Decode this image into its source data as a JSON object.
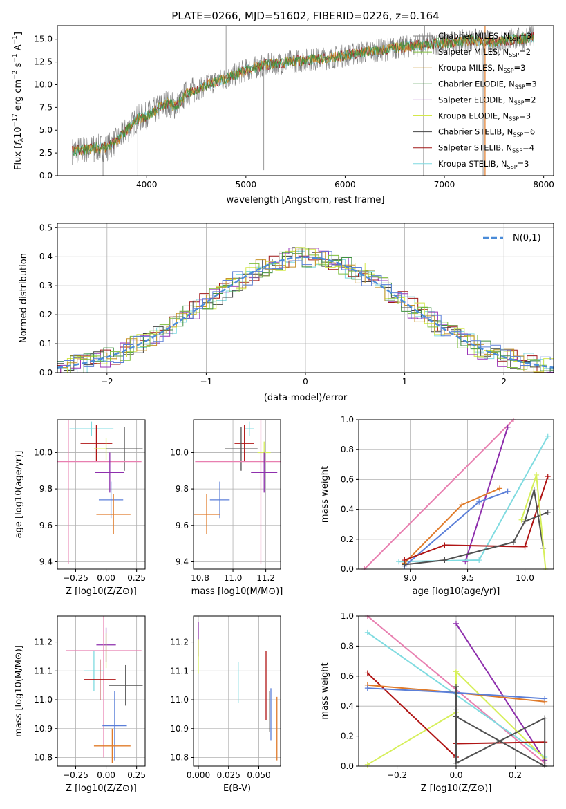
{
  "colors": {
    "Chabrier MILES": "#7f7f7f",
    "Salpeter MILES": "#7fbf3f",
    "Kroupa MILES": "#c8922a",
    "Chabrier ELODIE": "#3f8f3f",
    "Salpeter ELODIE": "#9a35b8",
    "Kroupa ELODIE": "#d4e84a",
    "Chabrier STELIB": "#444444",
    "Salpeter STELIB": "#a01818",
    "Kroupa STELIB": "#7fd9e0",
    "blue": "#5b7fd8",
    "orange": "#e07b2a",
    "pink": "#e87fb0",
    "purple": "#8e2fad",
    "cyan": "#7fdbe0",
    "red": "#b01515",
    "dark": "#505050",
    "yellow": "#d6ef5a",
    "normal": "#4a8bd8"
  },
  "chart_data": [
    {
      "id": "spectrum",
      "type": "line",
      "title": "PLATE=0266, MJD=51602, FIBERID=0226, z=0.164",
      "xlabel": "wavelength [Angstrom, rest frame]",
      "ylabel": "Flux [f_λ10^-17 erg cm^-2 s^-1 A^-1]",
      "xlim": [
        3100,
        8100
      ],
      "ylim": [
        0,
        16.5
      ],
      "xticks": [
        "4000",
        "5000",
        "6000",
        "7000",
        "8000"
      ],
      "yticks": [
        "0.0",
        "2.5",
        "5.0",
        "7.5",
        "10.0",
        "12.5",
        "15.0"
      ],
      "legend": [
        "Chabrier MILES, N_SSP=3",
        "Salpeter MILES, N_SSP=2",
        "Kroupa MILES, N_SSP=3",
        "Chabrier ELODIE, N_SSP=3",
        "Salpeter ELODIE, N_SSP=2",
        "Kroupa ELODIE, N_SSP=3",
        "Chabrier STELIB, N_SSP=6",
        "Salpeter STELIB, N_SSP=4",
        "Kroupa STELIB, N_SSP=3"
      ],
      "legend_keys": [
        "Chabrier MILES",
        "Salpeter MILES",
        "Kroupa MILES",
        "Chabrier ELODIE",
        "Salpeter ELODIE",
        "Kroupa ELODIE",
        "Chabrier STELIB",
        "Salpeter STELIB",
        "Kroupa STELIB"
      ],
      "legend_labels": [
        {
          "pre": "Chabrier MILES, N",
          "sub": "SSP",
          "post": "=3"
        },
        {
          "pre": "Salpeter MILES, N",
          "sub": "SSP",
          "post": "=2"
        },
        {
          "pre": "Kroupa MILES, N",
          "sub": "SSP",
          "post": "=3"
        },
        {
          "pre": "Chabrier ELODIE, N",
          "sub": "SSP",
          "post": "=3"
        },
        {
          "pre": "Salpeter ELODIE, N",
          "sub": "SSP",
          "post": "=2"
        },
        {
          "pre": "Kroupa ELODIE, N",
          "sub": "SSP",
          "post": "=3"
        },
        {
          "pre": "Chabrier STELIB, N",
          "sub": "SSP",
          "post": "=6"
        },
        {
          "pre": "Salpeter STELIB, N",
          "sub": "SSP",
          "post": "=4"
        },
        {
          "pre": "Kroupa STELIB, N",
          "sub": "SSP",
          "post": "=3"
        }
      ],
      "continuum": [
        [
          3250,
          2.7
        ],
        [
          3450,
          3.0
        ],
        [
          3600,
          3.1
        ],
        [
          3700,
          3.8
        ],
        [
          3800,
          5.0
        ],
        [
          3900,
          6.2
        ],
        [
          4000,
          6.6
        ],
        [
          4100,
          7.3
        ],
        [
          4200,
          8.0
        ],
        [
          4300,
          7.6
        ],
        [
          4400,
          9.0
        ],
        [
          4600,
          10.0
        ],
        [
          4800,
          10.7
        ],
        [
          5000,
          11.6
        ],
        [
          5200,
          12.2
        ],
        [
          5500,
          12.6
        ],
        [
          5800,
          12.9
        ],
        [
          6000,
          13.2
        ],
        [
          6200,
          13.6
        ],
        [
          6500,
          14.0
        ],
        [
          6700,
          14.3
        ],
        [
          7000,
          14.6
        ],
        [
          7300,
          14.9
        ],
        [
          7500,
          14.6
        ],
        [
          7700,
          15.0
        ],
        [
          7900,
          15.2
        ]
      ],
      "grey_spikes": [
        [
          3470,
          1.5
        ],
        [
          3560,
          0.0
        ],
        [
          3640,
          0.3
        ],
        [
          3910,
          0.0
        ],
        [
          4800,
          16.5
        ],
        [
          4810,
          0.0
        ],
        [
          5180,
          0.6
        ],
        [
          6790,
          0.0
        ],
        [
          6800,
          16.5
        ],
        [
          7390,
          0.0
        ],
        [
          7400,
          16.5
        ],
        [
          7450,
          14.2
        ]
      ],
      "orange_spike_x": 7410
    },
    {
      "id": "residuals",
      "type": "line",
      "xlabel": "(data-model)/error",
      "ylabel": "Normed distribution",
      "xlim": [
        -2.5,
        2.5
      ],
      "ylim": [
        0,
        0.515
      ],
      "xticks": [
        "−2",
        "−1",
        "0",
        "1",
        "2"
      ],
      "yticks": [
        "0.0",
        "0.1",
        "0.2",
        "0.3",
        "0.4",
        "0.5"
      ],
      "legend": "N(0,1)",
      "series": [
        {
          "name": "N(0,1)",
          "mean": 0,
          "sigma": 1
        }
      ]
    },
    {
      "id": "age_vs_Z",
      "type": "scatter",
      "xlabel": "Z [log10(Z/Z⊙)]",
      "ylabel": "age [log10(age/yr)]",
      "xlim": [
        -0.4,
        0.32
      ],
      "ylim": [
        9.36,
        10.18
      ],
      "xticks": [
        "−0.25",
        "0.00",
        "0.25"
      ],
      "yticks": [
        "9.4",
        "9.6",
        "9.8",
        "10.0"
      ],
      "points": [
        {
          "c": "cyan",
          "x": -0.12,
          "y": 10.13,
          "xe": 0.18,
          "ye": 0.04
        },
        {
          "c": "red",
          "x": -0.08,
          "y": 10.05,
          "xe": 0.13,
          "ye": 0.1
        },
        {
          "c": "yellow",
          "x": 0.0,
          "y": 10.02,
          "xe": 0.1,
          "ye": 0.06
        },
        {
          "c": "dark",
          "x": 0.15,
          "y": 10.02,
          "xe": 0.15,
          "ye": 0.12
        },
        {
          "c": "pink",
          "x": -0.31,
          "y": 9.95,
          "xe": 0.6,
          "ye": 0.56
        },
        {
          "c": "purple",
          "x": 0.03,
          "y": 9.89,
          "xe": 0.12,
          "ye": 0.11
        },
        {
          "c": "blue",
          "x": 0.04,
          "y": 9.74,
          "xe": 0.1,
          "ye": 0.1
        },
        {
          "c": "orange",
          "x": 0.06,
          "y": 9.66,
          "xe": 0.14,
          "ye": 0.11
        }
      ]
    },
    {
      "id": "age_vs_mass",
      "type": "scatter",
      "xlabel": "mass [log10(M/M⊙)]",
      "ylabel": "",
      "xlim": [
        10.76,
        11.29
      ],
      "ylim": [
        9.36,
        10.18
      ],
      "xticks": [
        "10.8",
        "11.0",
        "11.2"
      ],
      "yticks": [
        "9.4",
        "9.6",
        "9.8",
        "10.0"
      ],
      "points": [
        {
          "c": "cyan",
          "x": 11.1,
          "y": 10.13,
          "xe": 0.03,
          "ye": 0.04
        },
        {
          "c": "red",
          "x": 11.07,
          "y": 10.05,
          "xe": 0.06,
          "ye": 0.1
        },
        {
          "c": "yellow",
          "x": 11.19,
          "y": 10.0,
          "xe": 0.04,
          "ye": 0.06
        },
        {
          "c": "dark",
          "x": 11.05,
          "y": 10.02,
          "xe": 0.1,
          "ye": 0.12
        },
        {
          "c": "pink",
          "x": 11.17,
          "y": 9.95,
          "xe": 0.4,
          "ye": 0.56
        },
        {
          "c": "purple",
          "x": 11.19,
          "y": 9.89,
          "xe": 0.08,
          "ye": 0.11
        },
        {
          "c": "blue",
          "x": 10.92,
          "y": 9.74,
          "xe": 0.06,
          "ye": 0.1
        },
        {
          "c": "orange",
          "x": 10.84,
          "y": 9.66,
          "xe": 0.08,
          "ye": 0.11
        }
      ]
    },
    {
      "id": "mass_weight_vs_age",
      "type": "line",
      "xlabel": "age [log10(age/yr)]",
      "ylabel": "mass weight",
      "xlim": [
        8.55,
        10.25
      ],
      "ylim": [
        0,
        1.0
      ],
      "xticks": [
        "9.0",
        "9.5",
        "10.0"
      ],
      "yticks": [
        "0.0",
        "0.2",
        "0.4",
        "0.6",
        "0.8",
        "1.0"
      ],
      "series": [
        {
          "c": "pink",
          "x": [
            8.6,
            9.9
          ],
          "y": [
            0.0,
            1.0
          ]
        },
        {
          "c": "purple",
          "x": [
            9.48,
            9.85
          ],
          "y": [
            0.05,
            0.95
          ]
        },
        {
          "c": "cyan",
          "x": [
            8.9,
            9.6,
            10.2
          ],
          "y": [
            0.05,
            0.06,
            0.89
          ]
        },
        {
          "c": "orange",
          "x": [
            8.95,
            9.45,
            9.78
          ],
          "y": [
            0.04,
            0.43,
            0.54
          ]
        },
        {
          "c": "blue",
          "x": [
            8.95,
            9.6,
            9.85
          ],
          "y": [
            0.02,
            0.45,
            0.52
          ]
        },
        {
          "c": "red",
          "x": [
            8.95,
            9.3,
            10.0,
            10.2
          ],
          "y": [
            0.06,
            0.16,
            0.15,
            0.62
          ]
        },
        {
          "c": "dark",
          "x": [
            8.95,
            9.3,
            9.9,
            10.0,
            10.2
          ],
          "y": [
            0.03,
            0.06,
            0.18,
            0.32,
            0.38
          ]
        },
        {
          "c": "dark",
          "x": [
            10.0,
            10.08,
            10.16
          ],
          "y": [
            0.32,
            0.53,
            0.14
          ]
        },
        {
          "c": "yellow",
          "x": [
            9.97,
            10.1,
            10.18
          ],
          "y": [
            0.33,
            0.63,
            0.0
          ]
        }
      ]
    },
    {
      "id": "mass_vs_Z",
      "type": "scatter",
      "xlabel": "Z [log10(Z/Z⊙)]",
      "ylabel": "mass [log10(M/M⊙)]",
      "xlim": [
        -0.4,
        0.32
      ],
      "ylim": [
        10.77,
        11.29
      ],
      "xticks": [
        "−0.25",
        "0.00",
        "0.25"
      ],
      "yticks": [
        "10.8",
        "10.9",
        "11.0",
        "11.1",
        "11.2"
      ],
      "points": [
        {
          "c": "purple",
          "x": 0.0,
          "y": 11.19,
          "xe": 0.08,
          "ye": 0.06
        },
        {
          "c": "yellow",
          "x": 0.0,
          "y": 11.17,
          "xe": 0.03,
          "ye": 0.06
        },
        {
          "c": "pink",
          "x": -0.02,
          "y": 11.17,
          "xe": 0.31,
          "ye": 0.37
        },
        {
          "c": "cyan",
          "x": -0.1,
          "y": 11.1,
          "xe": 0.08,
          "ye": 0.07
        },
        {
          "c": "red",
          "x": -0.05,
          "y": 11.07,
          "xe": 0.13,
          "ye": 0.07
        },
        {
          "c": "dark",
          "x": 0.16,
          "y": 11.05,
          "xe": 0.14,
          "ye": 0.07
        },
        {
          "c": "blue",
          "x": 0.07,
          "y": 10.91,
          "xe": 0.1,
          "ye": 0.12
        },
        {
          "c": "orange",
          "x": 0.05,
          "y": 10.84,
          "xe": 0.15,
          "ye": 0.06
        }
      ]
    },
    {
      "id": "mass_vs_EBV",
      "type": "scatter",
      "xlabel": "E(B-V)",
      "ylabel": "",
      "xlim": [
        -0.004,
        0.068
      ],
      "ylim": [
        10.77,
        11.29
      ],
      "xticks": [
        "0.000",
        "0.025",
        "0.050"
      ],
      "yticks": [
        "10.8",
        "10.9",
        "11.0",
        "11.1",
        "11.2"
      ],
      "points": [
        {
          "c": "purple",
          "x": 0.0,
          "y": 11.21,
          "xe": 0,
          "ye": 0.06
        },
        {
          "c": "yellow",
          "x": 0.0,
          "y": 11.15,
          "xe": 0,
          "ye": 0.06
        },
        {
          "c": "cyan",
          "x": 0.033,
          "y": 11.06,
          "xe": 0,
          "ye": 0.07
        },
        {
          "c": "red",
          "x": 0.056,
          "y": 11.05,
          "xe": 0,
          "ye": 0.12
        },
        {
          "c": "dark",
          "x": 0.059,
          "y": 10.96,
          "xe": 0,
          "ye": 0.07
        },
        {
          "c": "blue",
          "x": 0.06,
          "y": 10.95,
          "xe": 0,
          "ye": 0.09
        },
        {
          "c": "orange",
          "x": 0.065,
          "y": 10.9,
          "xe": 0,
          "ye": 0.11
        }
      ]
    },
    {
      "id": "mass_weight_vs_Z",
      "type": "line",
      "xlabel": "Z [log10(Z/Z⊙)]",
      "ylabel": "mass weight",
      "xlim": [
        -0.33,
        0.33
      ],
      "ylim": [
        0,
        1.0
      ],
      "xticks": [
        "−0.2",
        "0.0",
        "0.2"
      ],
      "yticks": [
        "0.0",
        "0.2",
        "0.4",
        "0.6",
        "0.8",
        "1.0"
      ],
      "series": [
        {
          "c": "pink",
          "x": [
            -0.3,
            0.3
          ],
          "y": [
            1.0,
            0.02
          ]
        },
        {
          "c": "purple",
          "x": [
            0.0,
            0.3
          ],
          "y": [
            0.95,
            0.04
          ]
        },
        {
          "c": "cyan",
          "x": [
            -0.3,
            0.3
          ],
          "y": [
            0.89,
            0.06
          ]
        },
        {
          "c": "yellow",
          "x": [
            -0.3,
            0.0,
            0.0,
            0.3
          ],
          "y": [
            0.01,
            0.36,
            0.63,
            0.05
          ]
        },
        {
          "c": "red",
          "x": [
            -0.3,
            0.0,
            0.0,
            0.3
          ],
          "y": [
            0.62,
            0.06,
            0.15,
            0.16
          ]
        },
        {
          "c": "orange",
          "x": [
            -0.3,
            0.0,
            0.3
          ],
          "y": [
            0.54,
            0.49,
            0.43
          ]
        },
        {
          "c": "blue",
          "x": [
            -0.3,
            0.0,
            0.3
          ],
          "y": [
            0.52,
            0.49,
            0.45
          ]
        },
        {
          "c": "dark",
          "x": [
            0.0,
            0.0,
            0.3,
            0.3
          ],
          "y": [
            0.38,
            0.02,
            0.32,
            0.0
          ]
        },
        {
          "c": "dark",
          "x": [
            0.0,
            0.0,
            0.3
          ],
          "y": [
            0.53,
            0.33,
            0.0
          ]
        }
      ]
    }
  ]
}
